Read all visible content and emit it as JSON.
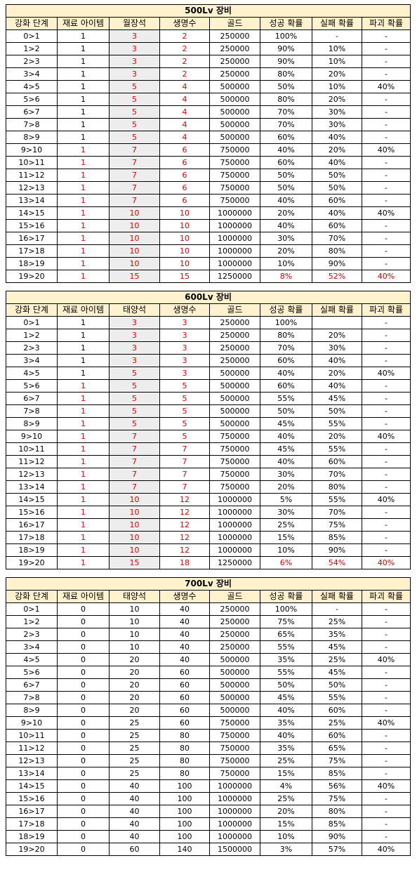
{
  "column_headers_common": {
    "stage": "강화 단계",
    "material": "재료 아이템",
    "life": "생명수",
    "gold": "골드",
    "success": "성공 확률",
    "fail": "실패 확률",
    "destroy": "파괴 확률"
  },
  "tables": [
    {
      "title": "500Lv 장비",
      "stone_header": "월장석",
      "rows": [
        [
          "0>1",
          "1",
          "3",
          "2",
          "250000",
          "100%",
          "-",
          "-"
        ],
        [
          "1>2",
          "1",
          "3",
          "2",
          "250000",
          "90%",
          "10%",
          "-"
        ],
        [
          "2>3",
          "1",
          "3",
          "2",
          "250000",
          "90%",
          "10%",
          "-"
        ],
        [
          "3>4",
          "1",
          "3",
          "2",
          "250000",
          "80%",
          "20%",
          "-"
        ],
        [
          "4>5",
          "1",
          "5",
          "4",
          "500000",
          "50%",
          "10%",
          "40%"
        ],
        [
          "5>6",
          "1",
          "5",
          "4",
          "500000",
          "80%",
          "20%",
          "-"
        ],
        [
          "6>7",
          "1",
          "5",
          "4",
          "500000",
          "70%",
          "30%",
          "-"
        ],
        [
          "7>8",
          "1",
          "5",
          "4",
          "500000",
          "70%",
          "30%",
          "-"
        ],
        [
          "8>9",
          "1",
          "5",
          "4",
          "500000",
          "60%",
          "40%",
          "-"
        ],
        [
          "9>10",
          "1",
          "7",
          "6",
          "750000",
          "40%",
          "20%",
          "40%"
        ],
        [
          "10>11",
          "1",
          "7",
          "6",
          "750000",
          "60%",
          "40%",
          "-"
        ],
        [
          "11>12",
          "1",
          "7",
          "6",
          "750000",
          "50%",
          "50%",
          "-"
        ],
        [
          "12>13",
          "1",
          "7",
          "6",
          "750000",
          "50%",
          "50%",
          "-"
        ],
        [
          "13>14",
          "1",
          "7",
          "6",
          "750000",
          "40%",
          "60%",
          "-"
        ],
        [
          "14>15",
          "1",
          "10",
          "10",
          "1000000",
          "20%",
          "40%",
          "40%"
        ],
        [
          "15>16",
          "1",
          "10",
          "10",
          "1000000",
          "40%",
          "60%",
          "-"
        ],
        [
          "16>17",
          "1",
          "10",
          "10",
          "1000000",
          "30%",
          "70%",
          "-"
        ],
        [
          "17>18",
          "1",
          "10",
          "10",
          "1000000",
          "20%",
          "80%",
          "-"
        ],
        [
          "18>19",
          "1",
          "10",
          "10",
          "1000000",
          "10%",
          "90%",
          "-"
        ],
        [
          "19>20",
          "1",
          "15",
          "15",
          "1250000",
          "8%",
          "52%",
          "40%"
        ]
      ],
      "red_material_from_row": 9,
      "red_stone": true,
      "red_last_row_probs": true,
      "shade_color": "#ededed"
    },
    {
      "title": "600Lv 장비",
      "stone_header": "태양석",
      "rows": [
        [
          "0>1",
          "1",
          "3",
          "3",
          "250000",
          "100%",
          "",
          "-"
        ],
        [
          "1>2",
          "1",
          "3",
          "3",
          "250000",
          "80%",
          "20%",
          "-"
        ],
        [
          "2>3",
          "1",
          "3",
          "3",
          "250000",
          "70%",
          "30%",
          "-"
        ],
        [
          "3>4",
          "1",
          "3",
          "3",
          "250000",
          "60%",
          "40%",
          "-"
        ],
        [
          "4>5",
          "1",
          "5",
          "3",
          "500000",
          "40%",
          "20%",
          "40%"
        ],
        [
          "5>6",
          "1",
          "5",
          "5",
          "500000",
          "60%",
          "40%",
          "-"
        ],
        [
          "6>7",
          "1",
          "5",
          "5",
          "500000",
          "55%",
          "45%",
          "-"
        ],
        [
          "7>8",
          "1",
          "5",
          "5",
          "500000",
          "50%",
          "50%",
          "-"
        ],
        [
          "8>9",
          "1",
          "5",
          "5",
          "500000",
          "45%",
          "55%",
          "-"
        ],
        [
          "9>10",
          "1",
          "7",
          "5",
          "750000",
          "40%",
          "20%",
          "40%"
        ],
        [
          "10>11",
          "1",
          "7",
          "7",
          "750000",
          "45%",
          "55%",
          "-"
        ],
        [
          "11>12",
          "1",
          "7",
          "7",
          "750000",
          "40%",
          "60%",
          "-"
        ],
        [
          "12>13",
          "1",
          "7",
          "7",
          "750000",
          "30%",
          "70%",
          "-"
        ],
        [
          "13>14",
          "1",
          "7",
          "7",
          "750000",
          "20%",
          "80%",
          "-"
        ],
        [
          "14>15",
          "1",
          "10",
          "12",
          "1000000",
          "5%",
          "55%",
          "40%"
        ],
        [
          "15>16",
          "1",
          "10",
          "12",
          "1000000",
          "30%",
          "70%",
          "-"
        ],
        [
          "16>17",
          "1",
          "10",
          "12",
          "1000000",
          "25%",
          "75%",
          "-"
        ],
        [
          "17>18",
          "1",
          "10",
          "12",
          "1000000",
          "15%",
          "85%",
          "-"
        ],
        [
          "18>19",
          "1",
          "10",
          "12",
          "1000000",
          "10%",
          "90%",
          "-"
        ],
        [
          "19>20",
          "1",
          "15",
          "18",
          "1250000",
          "6%",
          "54%",
          "40%"
        ]
      ],
      "red_material_from_row": 5,
      "red_stone": true,
      "red_last_row_probs": true,
      "shade_color": "#ededed"
    },
    {
      "title": "700Lv 장비",
      "stone_header": "태양석",
      "rows": [
        [
          "0>1",
          "0",
          "10",
          "40",
          "250000",
          "100%",
          "-",
          "-"
        ],
        [
          "1>2",
          "0",
          "10",
          "40",
          "250000",
          "75%",
          "25%",
          "-"
        ],
        [
          "2>3",
          "0",
          "10",
          "40",
          "250000",
          "65%",
          "35%",
          "-"
        ],
        [
          "3>4",
          "0",
          "10",
          "40",
          "250000",
          "55%",
          "45%",
          "-"
        ],
        [
          "4>5",
          "0",
          "20",
          "40",
          "500000",
          "35%",
          "25%",
          "40%"
        ],
        [
          "5>6",
          "0",
          "20",
          "60",
          "500000",
          "55%",
          "45%",
          "-"
        ],
        [
          "6>7",
          "0",
          "20",
          "60",
          "500000",
          "50%",
          "50%",
          "-"
        ],
        [
          "7>8",
          "0",
          "20",
          "60",
          "500000",
          "45%",
          "55%",
          "-"
        ],
        [
          "8>9",
          "0",
          "20",
          "60",
          "500000",
          "40%",
          "60%",
          "-"
        ],
        [
          "9>10",
          "0",
          "25",
          "60",
          "750000",
          "35%",
          "25%",
          "40%"
        ],
        [
          "10>11",
          "0",
          "25",
          "80",
          "750000",
          "40%",
          "60%",
          "-"
        ],
        [
          "11>12",
          "0",
          "25",
          "80",
          "750000",
          "35%",
          "65%",
          "-"
        ],
        [
          "12>13",
          "0",
          "25",
          "80",
          "750000",
          "25%",
          "75%",
          "-"
        ],
        [
          "13>14",
          "0",
          "25",
          "80",
          "750000",
          "15%",
          "85%",
          "-"
        ],
        [
          "14>15",
          "0",
          "40",
          "100",
          "1000000",
          "4%",
          "56%",
          "40%"
        ],
        [
          "15>16",
          "0",
          "40",
          "100",
          "1000000",
          "25%",
          "75%",
          "-"
        ],
        [
          "16>17",
          "0",
          "40",
          "100",
          "1000000",
          "20%",
          "80%",
          "-"
        ],
        [
          "17>18",
          "0",
          "40",
          "100",
          "1000000",
          "15%",
          "85%",
          "-"
        ],
        [
          "18>19",
          "0",
          "40",
          "100",
          "1000000",
          "10%",
          "90%",
          "-"
        ],
        [
          "19>20",
          "0",
          "60",
          "140",
          "1500000",
          "3%",
          "57%",
          "40%"
        ]
      ],
      "red_material_from_row": 99,
      "red_stone": false,
      "red_last_row_probs": false,
      "shade_color": ""
    }
  ]
}
